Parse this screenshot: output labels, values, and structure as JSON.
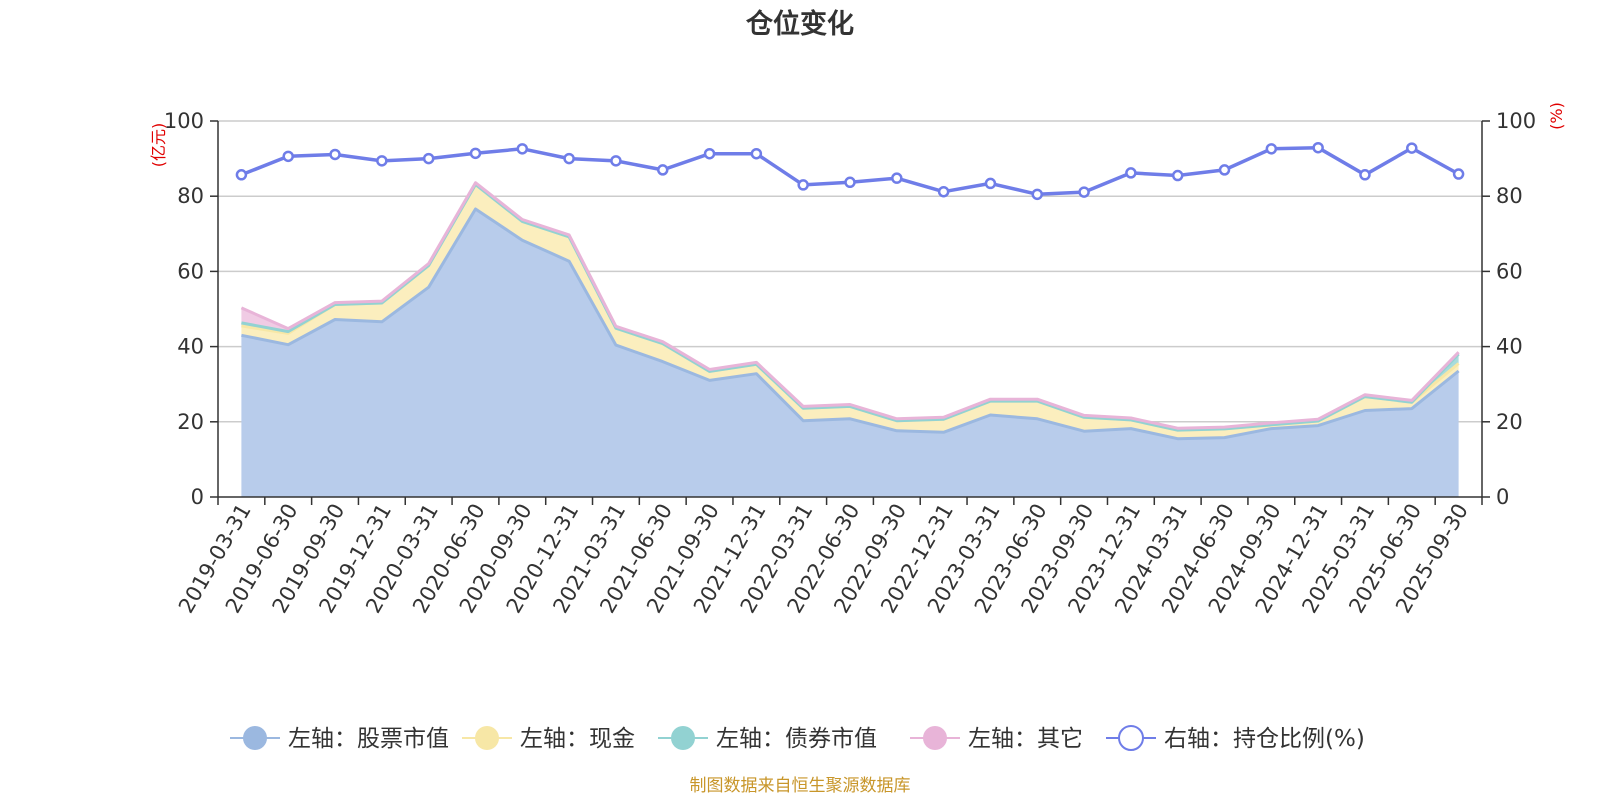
{
  "chart_data": {
    "type": "area",
    "title": "仓位变化",
    "left_unit": "(亿元)",
    "right_unit": "(%)",
    "left_ylim": [
      0,
      100
    ],
    "right_ylim": [
      0,
      100
    ],
    "left_ticks": [
      "0",
      "20",
      "40",
      "60",
      "80",
      "100"
    ],
    "right_ticks": [
      "0",
      "20",
      "40",
      "60",
      "80",
      "100"
    ],
    "categories": [
      "2019-03-31",
      "2019-06-30",
      "2019-09-30",
      "2019-12-31",
      "2020-03-31",
      "2020-06-30",
      "2020-09-30",
      "2020-12-31",
      "2021-03-31",
      "2021-06-30",
      "2021-09-30",
      "2021-12-31",
      "2022-03-31",
      "2022-06-30",
      "2022-09-30",
      "2022-12-31",
      "2023-03-31",
      "2023-06-30",
      "2023-09-30",
      "2023-12-31",
      "2024-03-31",
      "2024-06-30",
      "2024-09-30",
      "2024-12-31",
      "2025-03-31",
      "2025-06-30",
      "2025-09-30"
    ],
    "series": [
      {
        "name": "左轴：股票市值",
        "axis": "left",
        "stacked": true,
        "color": "#9bb8e0",
        "fill": "#b8cceb",
        "values": [
          43.0,
          40.5,
          47.2,
          46.6,
          55.8,
          76.6,
          68.3,
          62.7,
          40.4,
          36.0,
          31.0,
          32.8,
          20.3,
          20.8,
          17.6,
          17.2,
          21.8,
          20.8,
          17.5,
          18.2,
          15.5,
          15.8,
          18.2,
          19.0,
          23.0,
          23.5,
          33.5
        ]
      },
      {
        "name": "左轴：现金",
        "axis": "left",
        "stacked": true,
        "color": "#f7e7a6",
        "fill": "#fbeebe",
        "values": [
          2.5,
          3.0,
          4.0,
          5.0,
          5.8,
          6.5,
          5.0,
          6.5,
          4.5,
          4.8,
          2.4,
          2.5,
          3.3,
          3.3,
          2.7,
          3.5,
          3.7,
          4.7,
          3.7,
          2.3,
          2.3,
          2.3,
          1.0,
          1.2,
          3.7,
          1.7,
          2.0
        ]
      },
      {
        "name": "左轴：债券市值",
        "axis": "left",
        "stacked": true,
        "color": "#92d2d2",
        "fill": "#a8dcdc",
        "values": [
          0.8,
          0.5,
          0,
          0,
          0,
          0,
          0,
          0,
          0,
          0,
          0,
          0,
          0,
          0,
          0,
          0,
          0,
          0,
          0,
          0,
          0,
          0,
          0,
          0,
          0,
          0,
          2.5
        ]
      },
      {
        "name": "左轴：其它",
        "axis": "left",
        "stacked": true,
        "color": "#e8b4d8",
        "fill": "#f0cbe4",
        "values": [
          4.0,
          0.8,
          0.5,
          0.5,
          0.5,
          0.5,
          0.5,
          0.5,
          0.5,
          0.5,
          0.5,
          0.5,
          0.5,
          0.5,
          0.5,
          0.5,
          0.5,
          0.5,
          0.5,
          0.5,
          0.5,
          0.5,
          0.5,
          0.5,
          0.5,
          0.5,
          0.5
        ]
      },
      {
        "name": "右轴：持仓比例(%)",
        "axis": "right",
        "stacked": false,
        "color": "#6f7de8",
        "values": [
          85.7,
          90.6,
          91.1,
          89.4,
          90.0,
          91.4,
          92.6,
          90.0,
          89.4,
          87.0,
          91.3,
          91.3,
          83.0,
          83.7,
          84.8,
          81.2,
          83.4,
          80.5,
          81.1,
          86.2,
          85.5,
          87.0,
          92.6,
          92.9,
          85.7,
          92.8,
          85.9
        ]
      }
    ],
    "grid": true,
    "legend_position": "bottom"
  },
  "source_note": "制图数据来自恒生聚源数据库"
}
